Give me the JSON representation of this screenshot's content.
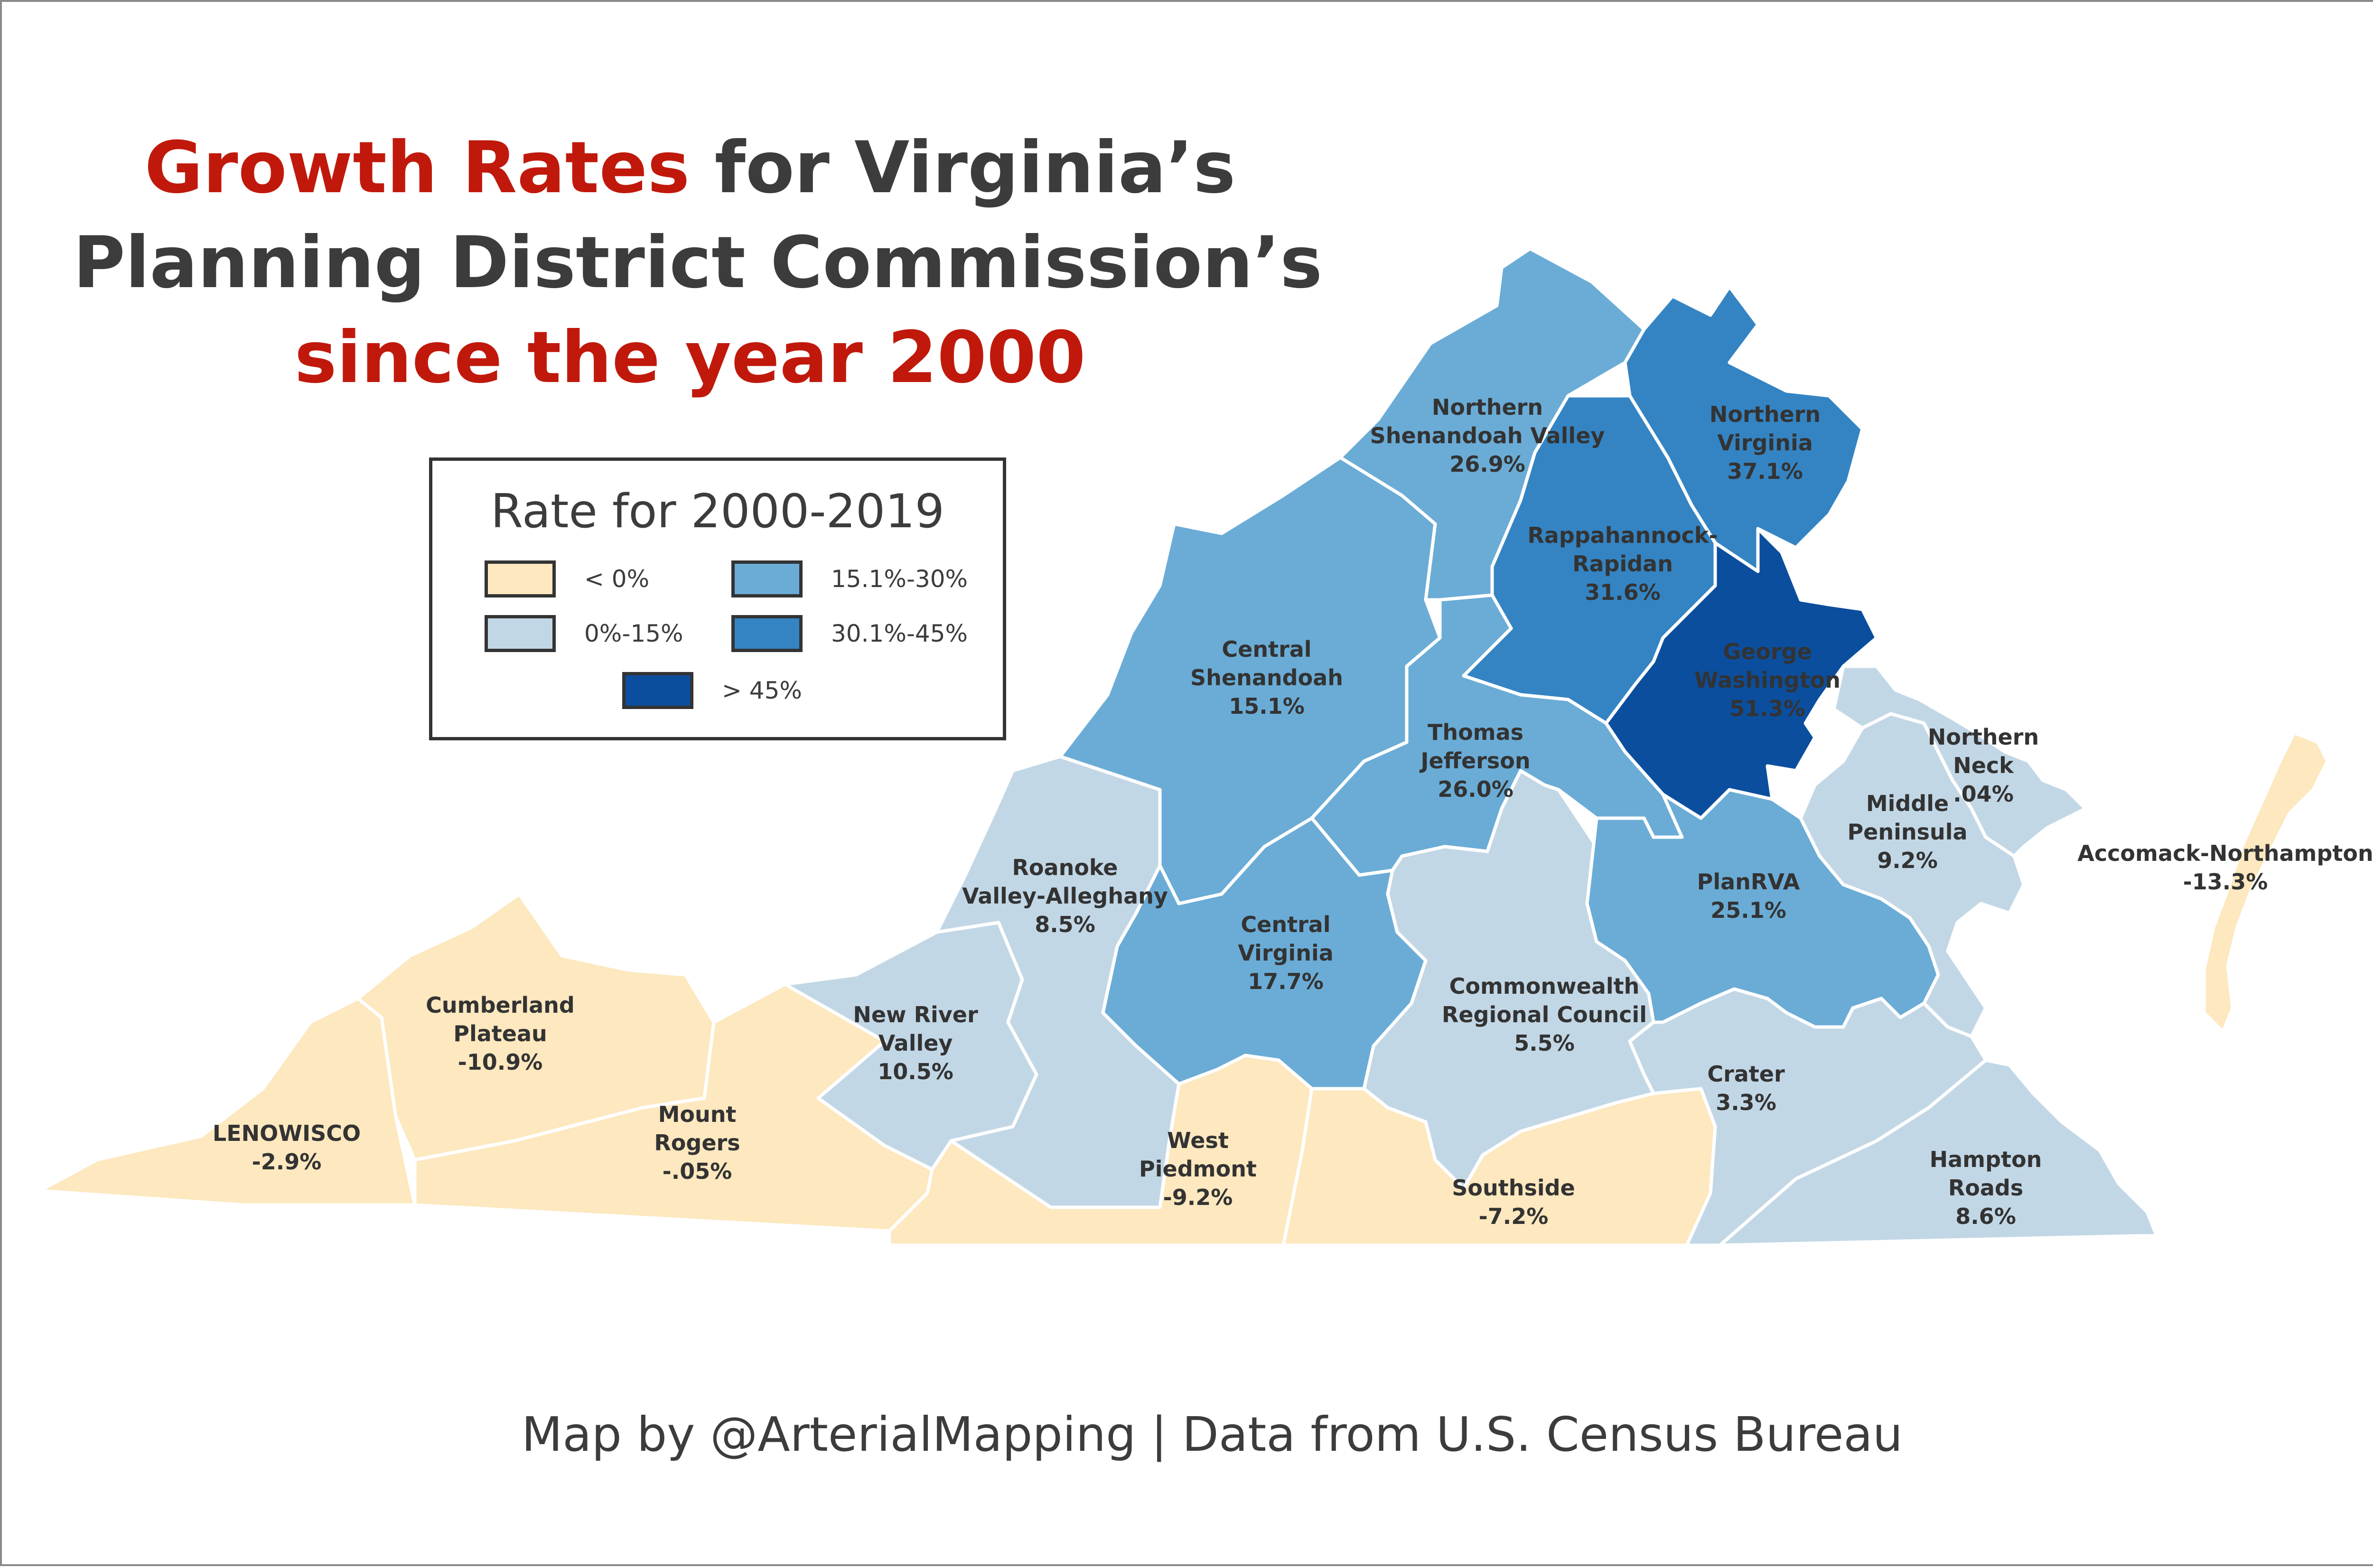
{
  "title": {
    "line1_red": "Growth Rates",
    "line1_rest": " for Virginia’s",
    "line2": "Planning District Commission’s",
    "line3": "since the year 2000"
  },
  "colors": {
    "title_accent": "#c0190c",
    "title_text": "#3c3c3c",
    "negative": "#fde8bf",
    "low": "#c2d7e6",
    "mid": "#6aacd6",
    "high": "#3484c3",
    "very_high": "#0b4e9e",
    "border": "#ffffff"
  },
  "legend": {
    "title": "Rate for 2000-2019",
    "items": [
      {
        "label": "< 0%",
        "color": "#fde8bf"
      },
      {
        "label": "0%-15%",
        "color": "#c2d7e6"
      },
      {
        "label": "15.1%-30%",
        "color": "#6aacd6"
      },
      {
        "label": "30.1%-45%",
        "color": "#3484c3"
      },
      {
        "label": "> 45%",
        "color": "#0b4e9e"
      }
    ]
  },
  "regions": [
    {
      "name_lines": [
        "LENOWISCO"
      ],
      "rate": "-2.9%",
      "class": "negative"
    },
    {
      "name_lines": [
        "Cumberland",
        "Plateau"
      ],
      "rate": "-10.9%",
      "class": "negative"
    },
    {
      "name_lines": [
        "Mount",
        "Rogers"
      ],
      "rate": "-.05%",
      "class": "negative"
    },
    {
      "name_lines": [
        "New River",
        "Valley"
      ],
      "rate": "10.5%",
      "class": "low"
    },
    {
      "name_lines": [
        "Roanoke",
        "Valley-Alleghany"
      ],
      "rate": "8.5%",
      "class": "low"
    },
    {
      "name_lines": [
        "Central",
        "Shenandoah"
      ],
      "rate": "15.1%",
      "class": "mid"
    },
    {
      "name_lines": [
        "Northern",
        "Shenandoah Valley"
      ],
      "rate": "26.9%",
      "class": "mid"
    },
    {
      "name_lines": [
        "Northern",
        "Virginia"
      ],
      "rate": "37.1%",
      "class": "high"
    },
    {
      "name_lines": [
        "Rappahannock-",
        "Rapidan"
      ],
      "rate": "31.6%",
      "class": "high"
    },
    {
      "name_lines": [
        "George",
        "Washington"
      ],
      "rate": "51.3%",
      "class": "very_high"
    },
    {
      "name_lines": [
        "Thomas",
        "Jefferson"
      ],
      "rate": "26.0%",
      "class": "mid"
    },
    {
      "name_lines": [
        "Central",
        "Virginia"
      ],
      "rate": "17.7%",
      "class": "mid"
    },
    {
      "name_lines": [
        "West",
        "Piedmont"
      ],
      "rate": "-9.2%",
      "class": "negative"
    },
    {
      "name_lines": [
        "Southside"
      ],
      "rate": "-7.2%",
      "class": "negative"
    },
    {
      "name_lines": [
        "Commonwealth",
        "Regional Council"
      ],
      "rate": "5.5%",
      "class": "low"
    },
    {
      "name_lines": [
        "PlanRVA"
      ],
      "rate": "25.1%",
      "class": "mid"
    },
    {
      "name_lines": [
        "Crater"
      ],
      "rate": "3.3%",
      "class": "low"
    },
    {
      "name_lines": [
        "Hampton",
        "Roads"
      ],
      "rate": "8.6%",
      "class": "low"
    },
    {
      "name_lines": [
        "Middle",
        "Peninsula"
      ],
      "rate": "9.2%",
      "class": "low"
    },
    {
      "name_lines": [
        "Northern",
        "Neck"
      ],
      "rate": ".04%",
      "class": "low"
    },
    {
      "name_lines": [
        "Accomack-Northampton"
      ],
      "rate": "-13.3%",
      "class": "negative"
    }
  ],
  "footer": "Map by @ArterialMapping | Data from U.S. Census Bureau"
}
